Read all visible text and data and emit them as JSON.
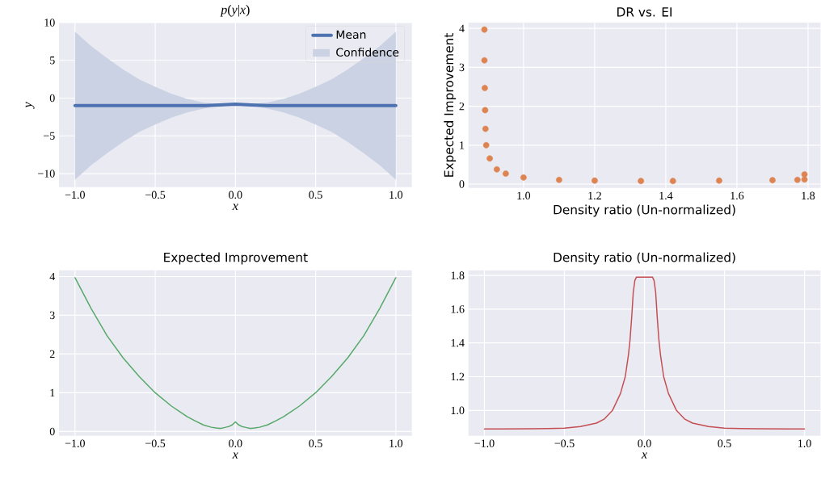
{
  "chart_data": [
    {
      "type": "line",
      "title": "*p*(*y*|*x*)",
      "xlabel": "x",
      "ylabel": "y",
      "grid": true,
      "legend": "top right",
      "annotations": [
        "Confidence"
      ],
      "x": [
        -1,
        -0.9,
        -0.8,
        -0.7,
        -0.6,
        -0.5,
        -0.4,
        -0.3,
        -0.2,
        -0.1,
        0,
        0.1,
        0.2,
        0.3,
        0.4,
        0.5,
        0.6,
        0.7,
        0.8,
        0.9,
        1
      ],
      "series": [
        {
          "name": "Mean",
          "color": "#4c72b0",
          "values": [
            -1,
            -1,
            -1,
            -1,
            -1,
            -1,
            -1,
            -1,
            -1,
            -0.9,
            -0.8,
            -0.9,
            -1,
            -1,
            -1,
            -1,
            -1,
            -1,
            -1,
            -1,
            -1
          ],
          "upper": [
            8.8,
            6.9,
            5.3,
            3.8,
            2.5,
            1.5,
            0.6,
            -0.1,
            -0.6,
            -0.8,
            -0.8,
            -0.8,
            -0.6,
            -0.1,
            0.6,
            1.5,
            2.5,
            3.8,
            5.3,
            6.9,
            8.8
          ],
          "lower": [
            -10.8,
            -8.9,
            -7.3,
            -5.8,
            -4.5,
            -3.5,
            -2.6,
            -1.9,
            -1.4,
            -1.0,
            -0.8,
            -1.0,
            -1.4,
            -1.9,
            -2.6,
            -3.5,
            -4.5,
            -5.8,
            -7.3,
            -8.9,
            -10.8
          ]
        }
      ],
      "xlim": [
        -1.1,
        1.1
      ],
      "ylim": [
        -11.8,
        10
      ],
      "xticks": [
        {
          "value": -1,
          "label": "−1.0"
        },
        {
          "value": -0.5,
          "label": "−0.5"
        },
        {
          "value": 0,
          "label": "0.0"
        },
        {
          "value": 0.5,
          "label": "0.5"
        },
        {
          "value": 1,
          "label": "1.0"
        }
      ],
      "yticks": [
        {
          "value": -10,
          "label": "−10"
        },
        {
          "value": -5,
          "label": "−5"
        },
        0,
        5,
        10
      ]
    },
    {
      "type": "scatter",
      "title": "DR vs. EI",
      "xlabel": "Density ratio (Un-normalized)",
      "ylabel": "Expected Improvement",
      "grid": true,
      "marker": "circle",
      "x": [
        1.79,
        1.79,
        1.77,
        1.7,
        1.55,
        1.42,
        1.33,
        1.2,
        1.1,
        1.0,
        0.95,
        0.925,
        0.905,
        0.895,
        0.893,
        0.892,
        0.891,
        0.89,
        0.89
      ],
      "series": [
        {
          "color": "#dd8452",
          "values": [
            0.25,
            0.12,
            0.11,
            0.1,
            0.09,
            0.08,
            0.08,
            0.09,
            0.11,
            0.17,
            0.27,
            0.38,
            0.66,
            1.0,
            1.42,
            1.9,
            2.47,
            3.18,
            3.97
          ]
        }
      ],
      "xlim": [
        0.845,
        1.835
      ],
      "ylim": [
        -0.1,
        4.15
      ],
      "xticks": [
        {
          "value": 1.0,
          "label": "1.0"
        },
        {
          "value": 1.2,
          "label": "1.2"
        },
        {
          "value": 1.4,
          "label": "1.4"
        },
        {
          "value": 1.6,
          "label": "1.6"
        },
        {
          "value": 1.8,
          "label": "1.8"
        }
      ],
      "yticks": [
        0,
        1,
        2,
        3,
        4
      ]
    },
    {
      "type": "line",
      "title": "Expected Improvement",
      "xlabel": "x",
      "grid": true,
      "x": [
        -1,
        -0.9,
        -0.8,
        -0.7,
        -0.6,
        -0.5,
        -0.4,
        -0.3,
        -0.25,
        -0.2,
        -0.15,
        -0.12,
        -0.1,
        -0.09,
        -0.08,
        -0.07,
        -0.06,
        -0.05,
        -0.04,
        -0.02,
        0,
        0.02,
        0.04,
        0.05,
        0.06,
        0.07,
        0.08,
        0.09,
        0.1,
        0.12,
        0.15,
        0.2,
        0.25,
        0.3,
        0.4,
        0.5,
        0.6,
        0.7,
        0.8,
        0.9,
        1
      ],
      "series": [
        {
          "color": "#55a868",
          "values": [
            3.97,
            3.18,
            2.47,
            1.9,
            1.42,
            1.0,
            0.66,
            0.38,
            0.27,
            0.17,
            0.11,
            0.09,
            0.08,
            0.08,
            0.09,
            0.1,
            0.11,
            0.12,
            0.13,
            0.17,
            0.25,
            0.17,
            0.13,
            0.12,
            0.11,
            0.1,
            0.09,
            0.08,
            0.08,
            0.09,
            0.11,
            0.17,
            0.27,
            0.38,
            0.66,
            1.0,
            1.42,
            1.9,
            2.47,
            3.18,
            3.97
          ]
        }
      ],
      "xlim": [
        -1.1,
        1.1
      ],
      "ylim": [
        -0.11,
        4.16
      ],
      "xticks": [
        {
          "value": -1,
          "label": "−1.0"
        },
        {
          "value": -0.5,
          "label": "−0.5"
        },
        {
          "value": 0,
          "label": "0.0"
        },
        {
          "value": 0.5,
          "label": "0.5"
        },
        {
          "value": 1,
          "label": "1.0"
        }
      ],
      "yticks": [
        0,
        1,
        2,
        3,
        4
      ]
    },
    {
      "type": "line",
      "title": "Density ratio (Un-normalized)",
      "xlabel": "x",
      "grid": true,
      "x": [
        -1,
        -0.9,
        -0.8,
        -0.7,
        -0.6,
        -0.5,
        -0.4,
        -0.3,
        -0.25,
        -0.2,
        -0.15,
        -0.12,
        -0.1,
        -0.09,
        -0.08,
        -0.07,
        -0.06,
        -0.05,
        -0.04,
        -0.02,
        0,
        0.02,
        0.04,
        0.05,
        0.06,
        0.07,
        0.08,
        0.09,
        0.1,
        0.12,
        0.15,
        0.2,
        0.25,
        0.3,
        0.4,
        0.5,
        0.6,
        0.7,
        0.8,
        0.9,
        1
      ],
      "series": [
        {
          "color": "#c44e52",
          "values": [
            0.89,
            0.89,
            0.891,
            0.892,
            0.893,
            0.895,
            0.905,
            0.925,
            0.95,
            1.0,
            1.1,
            1.2,
            1.33,
            1.42,
            1.55,
            1.7,
            1.77,
            1.79,
            1.79,
            1.79,
            1.79,
            1.79,
            1.79,
            1.79,
            1.77,
            1.7,
            1.55,
            1.42,
            1.33,
            1.2,
            1.1,
            1.0,
            0.95,
            0.925,
            0.905,
            0.895,
            0.893,
            0.892,
            0.891,
            0.89,
            0.89
          ]
        }
      ],
      "xlim": [
        -1.1,
        1.1
      ],
      "ylim": [
        0.85,
        1.83
      ],
      "xticks": [
        {
          "value": -1,
          "label": "−1.0"
        },
        {
          "value": -0.5,
          "label": "−0.5"
        },
        {
          "value": 0,
          "label": "0.0"
        },
        {
          "value": 0.5,
          "label": "0.5"
        },
        {
          "value": 1,
          "label": "1.0"
        }
      ],
      "yticks": [
        {
          "value": 1.0,
          "label": "1.0"
        },
        {
          "value": 1.2,
          "label": "1.2"
        },
        {
          "value": 1.4,
          "label": "1.4"
        },
        {
          "value": 1.6,
          "label": "1.6"
        },
        {
          "value": 1.8,
          "label": "1.8"
        }
      ]
    }
  ]
}
